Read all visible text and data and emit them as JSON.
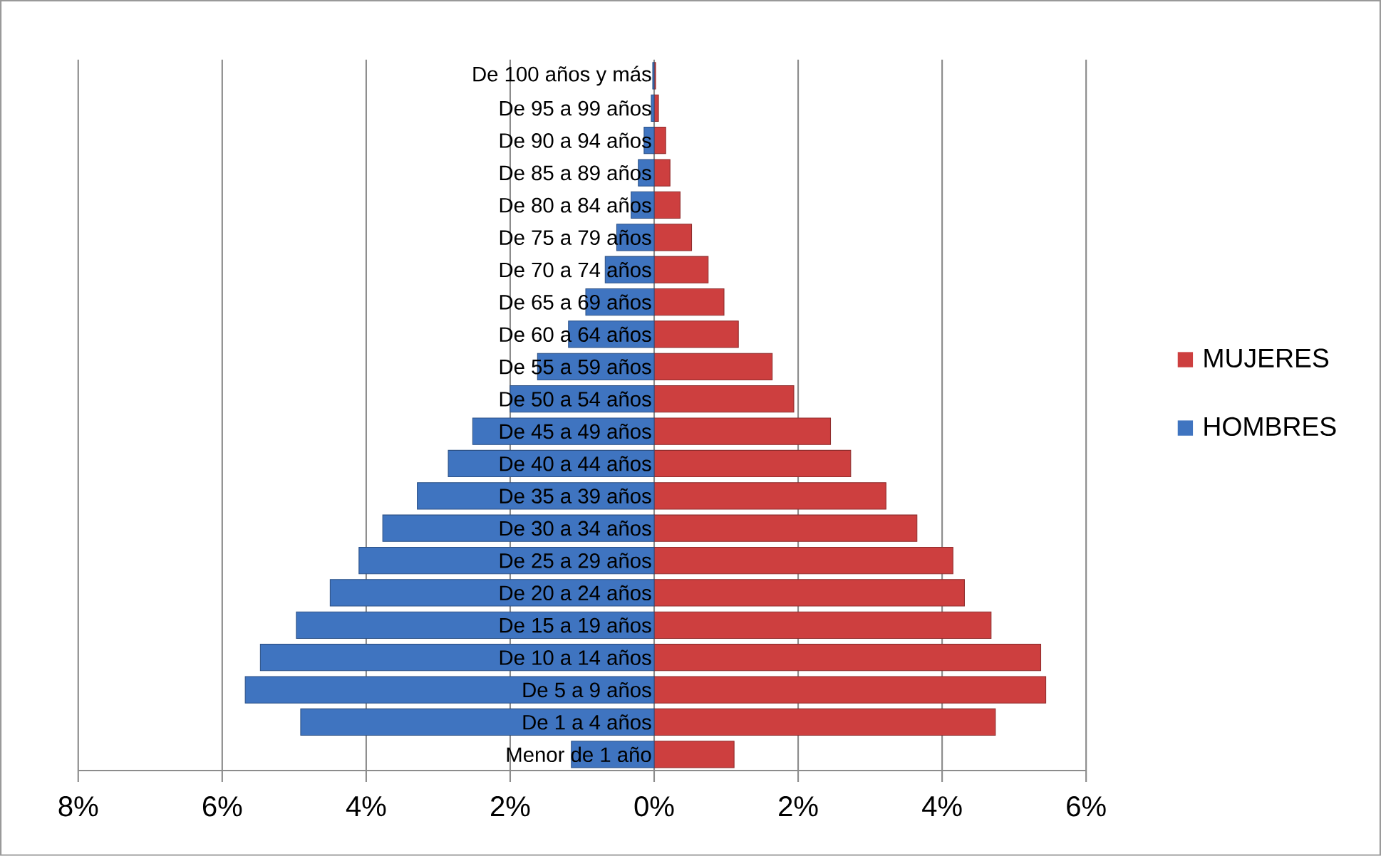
{
  "chart_data": {
    "type": "bar",
    "orientation": "horizontal",
    "categories": [
      "De 100 años y más",
      "De 95 a 99 años",
      "De 90 a 94 años",
      "De 85 a 89 años",
      "De 80 a 84 años",
      "De 75 a 79 años",
      "De 70 a 74 años",
      "De 65 a 69 años",
      "De 60 a 64 años",
      "De 55 a 59 años",
      "De 50 a 54 años",
      "De 45 a 49 años",
      "De 40 a 44 años",
      "De 35 a 39 años",
      "De 30 a 34 años",
      "De 25 a 29 años",
      "De 20 a 24 años",
      "De 15 a 19 años",
      "De 10 a 14 años",
      "De 5 a 9 años",
      "De 1 a 4 años",
      "Menor de 1 año"
    ],
    "series": [
      {
        "name": "MUJERES",
        "color": "#cd3f3f",
        "values": [
          0.02,
          0.06,
          0.16,
          0.22,
          0.36,
          0.52,
          0.75,
          0.97,
          1.17,
          1.64,
          1.94,
          2.45,
          2.73,
          3.22,
          3.65,
          4.15,
          4.31,
          4.68,
          5.37,
          5.44,
          4.74,
          1.11
        ]
      },
      {
        "name": "HOMBRES",
        "color": "#3f74c0",
        "values": [
          -0.02,
          -0.04,
          -0.14,
          -0.22,
          -0.32,
          -0.52,
          -0.68,
          -0.95,
          -1.19,
          -1.62,
          -2.0,
          -2.52,
          -2.86,
          -3.29,
          -3.77,
          -4.1,
          -4.5,
          -4.97,
          -5.47,
          -5.68,
          -4.91,
          -1.15
        ]
      }
    ],
    "xlim": [
      -8,
      6
    ],
    "xticks": [
      {
        "value": -8,
        "label": "8%"
      },
      {
        "value": -6,
        "label": "6%"
      },
      {
        "value": -4,
        "label": "4%"
      },
      {
        "value": -2,
        "label": "2%"
      },
      {
        "value": 0,
        "label": "0%"
      },
      {
        "value": 2,
        "label": "2%"
      },
      {
        "value": 4,
        "label": "4%"
      },
      {
        "value": 6,
        "label": "6%"
      }
    ],
    "stacked": true,
    "grid": "x",
    "legend": "right"
  }
}
